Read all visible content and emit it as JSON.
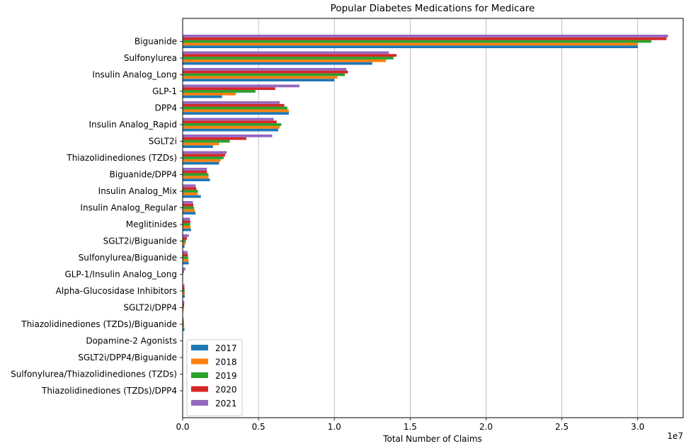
{
  "chart_data": {
    "type": "bar",
    "orientation": "horizontal",
    "title": "Popular Diabetes Medications for Medicare",
    "xlabel": "Total Number of Claims",
    "ylabel": "",
    "x_offset_text": "1e7",
    "xlim": [
      0,
      3.3
    ],
    "xticks": [
      "0.0",
      "0.5",
      "1.0",
      "1.5",
      "2.0",
      "2.5",
      "3.0"
    ],
    "grid": "x",
    "legend_position": "lower-left",
    "categories": [
      "Biguanide",
      "Sulfonylurea",
      "Insulin Analog_Long",
      "GLP-1",
      "DPP4",
      "Insulin Analog_Rapid",
      "SGLT2i",
      "Thiazolidinediones (TZDs)",
      "Biguanide/DPP4",
      "Insulin Analog_Mix",
      "Insulin Analog_Regular",
      "Meglitinides",
      "SGLT2i/Biguanide",
      "Sulfonylurea/Biguanide",
      "GLP-1/Insulin Analog_Long",
      "Alpha-Glucosidase Inhibitors",
      "SGLT2i/DPP4",
      "Thiazolidinediones (TZDs)/Biguanide",
      "Dopamine-2 Agonists",
      "SGLT2i/DPP4/Biguanide",
      "Sulfonylurea/Thiazolidinediones (TZDs)",
      "Thiazolidinediones (TZDs)/DPP4"
    ],
    "series": [
      {
        "name": "2017",
        "color": "#1f77b4",
        "values": [
          3.0,
          1.25,
          1.0,
          0.26,
          0.7,
          0.63,
          0.2,
          0.24,
          0.18,
          0.12,
          0.085,
          0.055,
          0.012,
          0.04,
          0.0,
          0.014,
          0.003,
          0.012,
          0.001,
          0.0,
          0.0,
          0.001
        ]
      },
      {
        "name": "2018",
        "color": "#ff7f0e",
        "values": [
          3.0,
          1.34,
          1.02,
          0.35,
          0.7,
          0.64,
          0.24,
          0.25,
          0.17,
          0.1,
          0.08,
          0.052,
          0.018,
          0.038,
          0.0,
          0.014,
          0.006,
          0.01,
          0.001,
          0.0,
          0.0,
          0.001
        ]
      },
      {
        "name": "2019",
        "color": "#2ca02c",
        "values": [
          3.09,
          1.39,
          1.07,
          0.48,
          0.69,
          0.65,
          0.31,
          0.27,
          0.17,
          0.1,
          0.075,
          0.05,
          0.022,
          0.036,
          0.003,
          0.013,
          0.008,
          0.008,
          0.001,
          0.001,
          0.0,
          0.001
        ]
      },
      {
        "name": "2020",
        "color": "#d62728",
        "values": [
          3.19,
          1.41,
          1.09,
          0.61,
          0.67,
          0.62,
          0.42,
          0.28,
          0.16,
          0.09,
          0.07,
          0.05,
          0.028,
          0.034,
          0.008,
          0.012,
          0.01,
          0.007,
          0.001,
          0.001,
          0.0,
          0.001
        ]
      },
      {
        "name": "2021",
        "color": "#9467bd",
        "values": [
          3.2,
          1.36,
          1.08,
          0.77,
          0.64,
          0.6,
          0.59,
          0.29,
          0.16,
          0.085,
          0.068,
          0.048,
          0.04,
          0.032,
          0.018,
          0.012,
          0.011,
          0.006,
          0.001,
          0.002,
          0.0,
          0.001
        ]
      }
    ]
  }
}
